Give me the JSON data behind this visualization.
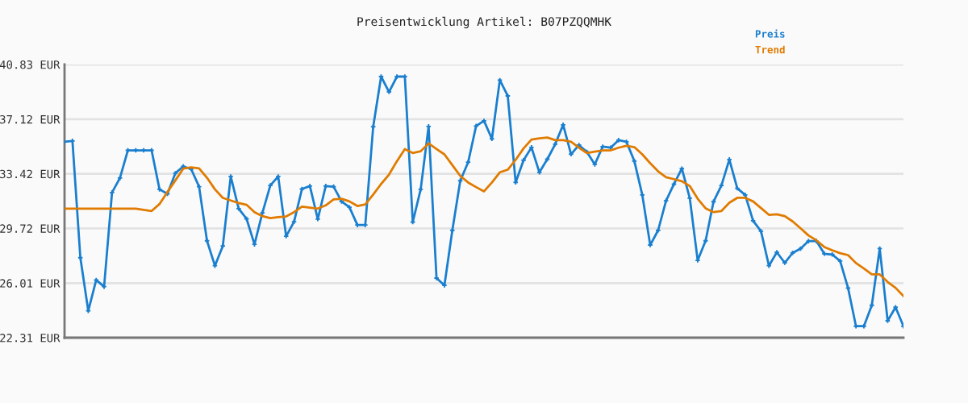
{
  "chart_data": {
    "type": "line",
    "title": "Preisentwicklung Artikel: B07PZQQMHK",
    "categories": [
      null,
      null,
      null,
      null,
      null,
      null,
      null,
      null,
      null,
      null,
      null,
      null,
      null,
      null,
      null,
      null,
      null,
      null,
      null,
      null,
      null,
      null,
      null,
      null,
      null,
      null,
      null,
      null,
      null,
      null,
      null,
      null,
      null,
      null,
      null,
      null,
      null,
      null,
      null,
      null,
      null,
      null,
      null,
      null,
      null,
      null,
      null,
      null,
      null,
      null,
      null,
      null,
      null,
      null,
      null,
      null,
      null,
      null,
      null,
      null,
      null,
      null,
      null,
      null,
      null,
      null,
      null,
      null,
      null,
      null,
      null,
      null,
      null,
      null,
      null,
      null,
      null,
      null,
      null,
      null,
      null,
      null,
      null,
      null,
      null,
      null,
      null,
      null,
      null,
      null,
      null,
      null,
      null,
      null,
      null,
      null,
      null,
      null,
      null,
      null,
      null,
      null,
      null,
      null,
      null,
      null,
      null
    ],
    "series": [
      {
        "name": "Preis",
        "color": "#1a7fcf",
        "marker": "cross",
        "values": [
          35.59,
          35.65,
          27.73,
          24.13,
          26.22,
          25.77,
          32.15,
          33.13,
          35.01,
          35.01,
          35.01,
          35.01,
          32.37,
          32.06,
          33.46,
          33.92,
          33.74,
          32.55,
          28.88,
          27.19,
          28.53,
          33.24,
          31.06,
          30.37,
          28.64,
          30.77,
          32.63,
          33.24,
          29.19,
          30.17,
          32.39,
          32.59,
          30.35,
          32.59,
          32.55,
          31.55,
          31.15,
          29.95,
          29.95,
          36.61,
          40.01,
          38.97,
          40.01,
          40.01,
          30.15,
          32.37,
          36.63,
          26.35,
          25.86,
          29.59,
          32.95,
          34.21,
          36.66,
          37.01,
          35.79,
          39.77,
          38.7,
          32.84,
          34.34,
          35.21,
          33.52,
          34.41,
          35.43,
          36.74,
          34.75,
          35.37,
          34.9,
          34.06,
          35.26,
          35.19,
          35.7,
          35.59,
          34.28,
          31.99,
          28.59,
          29.59,
          31.59,
          32.72,
          33.77,
          31.77,
          27.55,
          28.88,
          31.53,
          32.63,
          34.39,
          32.44,
          31.99,
          30.24,
          29.53,
          27.19,
          28.1,
          27.39,
          28.06,
          28.35,
          28.86,
          28.86,
          28.0,
          27.95,
          27.51,
          25.68,
          23.09,
          23.09,
          24.51,
          28.35,
          23.46,
          24.37,
          23.09
        ]
      },
      {
        "name": "Trend",
        "color": "#e07b00",
        "marker": "none",
        "values": [
          31.06,
          31.06,
          31.06,
          31.06,
          31.06,
          31.06,
          31.06,
          31.06,
          31.06,
          31.06,
          30.97,
          30.9,
          31.37,
          32.19,
          32.97,
          33.77,
          33.86,
          33.79,
          33.15,
          32.37,
          31.79,
          31.61,
          31.44,
          31.32,
          30.82,
          30.55,
          30.42,
          30.48,
          30.53,
          30.82,
          31.19,
          31.13,
          31.06,
          31.28,
          31.68,
          31.73,
          31.55,
          31.24,
          31.35,
          32.01,
          32.73,
          33.37,
          34.28,
          35.1,
          34.83,
          34.95,
          35.48,
          35.1,
          34.74,
          34.01,
          33.28,
          32.83,
          32.52,
          32.23,
          32.83,
          33.52,
          33.7,
          34.37,
          35.14,
          35.74,
          35.83,
          35.88,
          35.7,
          35.7,
          35.59,
          35.19,
          34.83,
          34.92,
          35.01,
          35.01,
          35.19,
          35.32,
          35.23,
          34.74,
          34.14,
          33.59,
          33.19,
          33.06,
          32.92,
          32.59,
          31.73,
          31.08,
          30.82,
          30.9,
          31.46,
          31.79,
          31.79,
          31.55,
          31.1,
          30.64,
          30.68,
          30.55,
          30.19,
          29.73,
          29.24,
          28.91,
          28.46,
          28.24,
          28.04,
          27.91,
          27.37,
          27.0,
          26.6,
          26.6,
          26.09,
          25.69,
          25.13
        ]
      }
    ],
    "ylim": [
      22.31,
      40.83
    ],
    "yticks": [
      {
        "value": 22.31,
        "label": "22.31 EUR"
      },
      {
        "value": 26.01,
        "label": "26.01 EUR"
      },
      {
        "value": 29.72,
        "label": "29.72 EUR"
      },
      {
        "value": 33.42,
        "label": "33.42 EUR"
      },
      {
        "value": 37.12,
        "label": "37.12 EUR"
      },
      {
        "value": 40.83,
        "label": "40.83 EUR"
      }
    ],
    "grid": "y",
    "legend": "top right",
    "line_style": "solid"
  }
}
